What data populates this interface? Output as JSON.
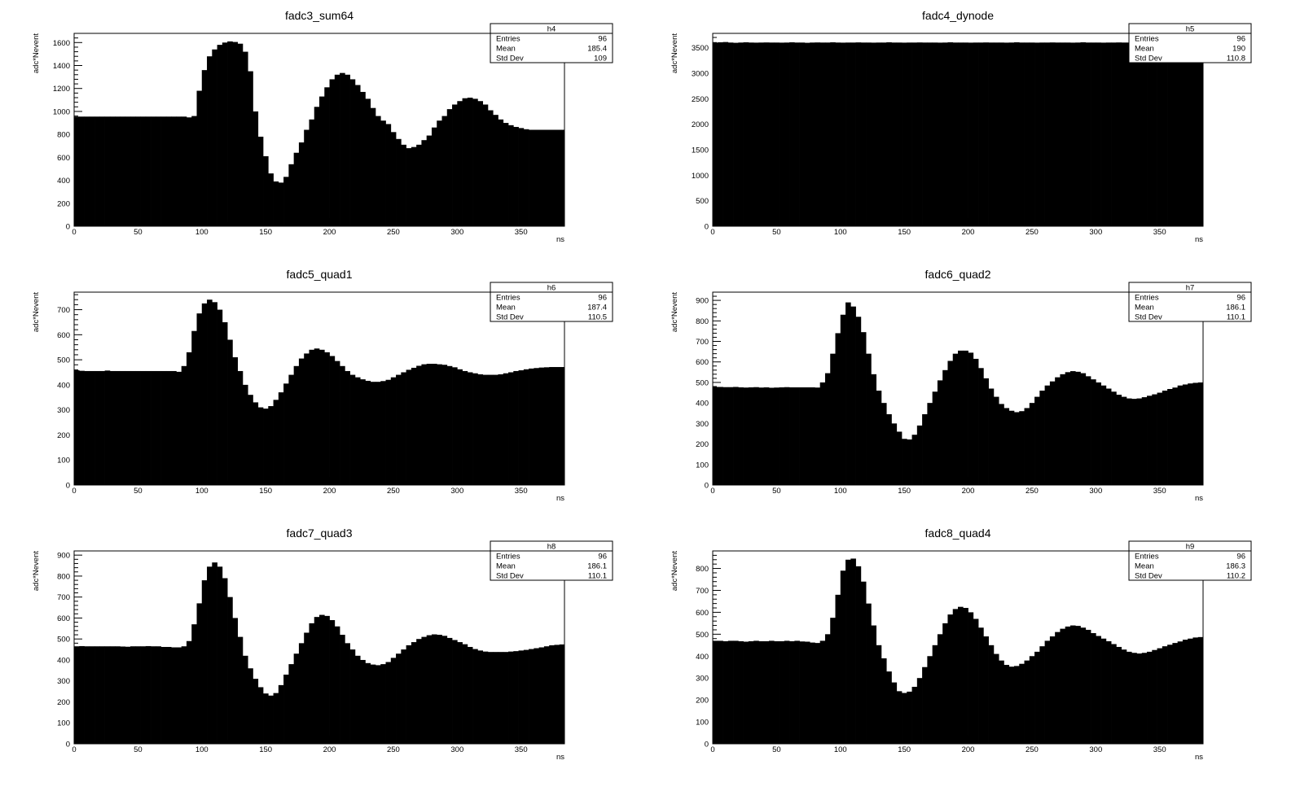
{
  "chart_data": [
    {
      "type": "bar",
      "title": "fadc3_sum64",
      "xlabel": "ns",
      "ylabel": "adc*Nevent",
      "xlim": [
        0,
        384
      ],
      "ylim": [
        0,
        1680
      ],
      "bin_width": 4,
      "xticks": [
        0,
        50,
        100,
        150,
        200,
        250,
        300,
        350
      ],
      "yticks": [
        0,
        200,
        400,
        600,
        800,
        1000,
        1200,
        1400,
        1600
      ],
      "bar_color": "#000000",
      "stats": {
        "name": "h4",
        "rows": [
          {
            "label": "Entries",
            "value": "96"
          },
          {
            "label": "Mean",
            "value": "185.4"
          },
          {
            "label": "Std Dev",
            "value": "109"
          }
        ]
      },
      "values": [
        955,
        955,
        955,
        955,
        955,
        955,
        955,
        955,
        955,
        955,
        955,
        955,
        955,
        955,
        955,
        955,
        955,
        955,
        955,
        955,
        955,
        955,
        948,
        960,
        1180,
        1360,
        1480,
        1540,
        1580,
        1600,
        1610,
        1605,
        1590,
        1520,
        1350,
        1000,
        780,
        610,
        460,
        390,
        380,
        430,
        540,
        640,
        730,
        840,
        930,
        1040,
        1130,
        1210,
        1280,
        1320,
        1335,
        1320,
        1280,
        1230,
        1170,
        1110,
        1030,
        960,
        920,
        890,
        820,
        760,
        710,
        680,
        690,
        710,
        750,
        790,
        860,
        920,
        960,
        1020,
        1060,
        1090,
        1115,
        1120,
        1110,
        1090,
        1060,
        1010,
        970,
        930,
        900,
        880,
        865,
        855,
        845,
        840,
        840,
        840,
        840,
        840,
        840,
        840
      ]
    },
    {
      "type": "bar",
      "title": "fadc4_dynode",
      "xlabel": "ns",
      "ylabel": "adc*Nevent",
      "xlim": [
        0,
        384
      ],
      "ylim": [
        0,
        3780
      ],
      "bin_width": 4,
      "xticks": [
        0,
        50,
        100,
        150,
        200,
        250,
        300,
        350
      ],
      "yticks": [
        0,
        500,
        1000,
        1500,
        2000,
        2500,
        3000,
        3500
      ],
      "bar_color": "#000000",
      "stats": {
        "name": "h5",
        "rows": [
          {
            "label": "Entries",
            "value": "96"
          },
          {
            "label": "Mean",
            "value": "190"
          },
          {
            "label": "Std Dev",
            "value": "110.8"
          }
        ]
      },
      "values": [
        3600,
        3605,
        3610,
        3600,
        3595,
        3600,
        3605,
        3600,
        3598,
        3600,
        3602,
        3600,
        3600,
        3598,
        3600,
        3605,
        3600,
        3600,
        3595,
        3600,
        3602,
        3600,
        3600,
        3605,
        3600,
        3598,
        3600,
        3600,
        3603,
        3600,
        3600,
        3598,
        3600,
        3600,
        3605,
        3600,
        3600,
        3598,
        3600,
        3600,
        3602,
        3600,
        3600,
        3600,
        3598,
        3600,
        3605,
        3600,
        3600,
        3600,
        3598,
        3600,
        3600,
        3602,
        3600,
        3600,
        3600,
        3598,
        3600,
        3605,
        3600,
        3600,
        3600,
        3598,
        3600,
        3600,
        3602,
        3600,
        3600,
        3600,
        3598,
        3600,
        3605,
        3600,
        3600,
        3600,
        3598,
        3600,
        3600,
        3602,
        3600,
        3600,
        3600,
        3598,
        3600,
        3605,
        3600,
        3600,
        3600,
        3598,
        3600,
        3600,
        3602,
        3600,
        3600,
        3600
      ]
    },
    {
      "type": "bar",
      "title": "fadc5_quad1",
      "xlabel": "ns",
      "ylabel": "adc*Nevent",
      "xlim": [
        0,
        384
      ],
      "ylim": [
        0,
        770
      ],
      "bin_width": 4,
      "xticks": [
        0,
        50,
        100,
        150,
        200,
        250,
        300,
        350
      ],
      "yticks": [
        0,
        100,
        200,
        300,
        400,
        500,
        600,
        700
      ],
      "bar_color": "#000000",
      "stats": {
        "name": "h6",
        "rows": [
          {
            "label": "Entries",
            "value": "96"
          },
          {
            "label": "Mean",
            "value": "187.4"
          },
          {
            "label": "Std Dev",
            "value": "110.5"
          }
        ]
      },
      "values": [
        458,
        456,
        455,
        455,
        455,
        455,
        457,
        455,
        455,
        455,
        455,
        455,
        455,
        455,
        455,
        455,
        455,
        455,
        455,
        455,
        452,
        475,
        530,
        615,
        685,
        725,
        740,
        730,
        700,
        650,
        580,
        510,
        455,
        400,
        360,
        330,
        310,
        305,
        315,
        340,
        370,
        405,
        440,
        475,
        505,
        525,
        540,
        545,
        540,
        530,
        515,
        495,
        475,
        455,
        440,
        430,
        422,
        416,
        412,
        412,
        415,
        420,
        430,
        440,
        450,
        460,
        468,
        476,
        482,
        484,
        484,
        482,
        480,
        475,
        470,
        462,
        455,
        450,
        446,
        442,
        440,
        440,
        440,
        442,
        446,
        450,
        455,
        458,
        462,
        465,
        467,
        469,
        470,
        471,
        471,
        471
      ]
    },
    {
      "type": "bar",
      "title": "fadc6_quad2",
      "xlabel": "ns",
      "ylabel": "adc*Nevent",
      "xlim": [
        0,
        384
      ],
      "ylim": [
        0,
        940
      ],
      "bin_width": 4,
      "xticks": [
        0,
        50,
        100,
        150,
        200,
        250,
        300,
        350
      ],
      "yticks": [
        0,
        100,
        200,
        300,
        400,
        500,
        600,
        700,
        800,
        900
      ],
      "bar_color": "#000000",
      "stats": {
        "name": "h7",
        "rows": [
          {
            "label": "Entries",
            "value": "96"
          },
          {
            "label": "Mean",
            "value": "186.1"
          },
          {
            "label": "Std Dev",
            "value": "110.1"
          }
        ]
      },
      "values": [
        478,
        478,
        477,
        477,
        478,
        476,
        475,
        476,
        477,
        475,
        476,
        474,
        475,
        476,
        477,
        476,
        476,
        476,
        476,
        476,
        475,
        500,
        545,
        640,
        740,
        830,
        890,
        870,
        820,
        745,
        640,
        540,
        460,
        400,
        345,
        300,
        260,
        225,
        222,
        245,
        290,
        345,
        400,
        455,
        510,
        560,
        605,
        640,
        655,
        655,
        645,
        615,
        570,
        520,
        470,
        430,
        395,
        375,
        362,
        355,
        360,
        375,
        400,
        430,
        460,
        485,
        505,
        525,
        540,
        550,
        555,
        552,
        545,
        530,
        515,
        500,
        485,
        470,
        455,
        440,
        430,
        422,
        420,
        422,
        428,
        435,
        442,
        450,
        460,
        468,
        475,
        485,
        490,
        495,
        498,
        500
      ]
    },
    {
      "type": "bar",
      "title": "fadc7_quad3",
      "xlabel": "ns",
      "ylabel": "adc*Nevent",
      "xlim": [
        0,
        384
      ],
      "ylim": [
        0,
        920
      ],
      "bin_width": 4,
      "xticks": [
        0,
        50,
        100,
        150,
        200,
        250,
        300,
        350
      ],
      "yticks": [
        0,
        100,
        200,
        300,
        400,
        500,
        600,
        700,
        800,
        900
      ],
      "bar_color": "#000000",
      "stats": {
        "name": "h8",
        "rows": [
          {
            "label": "Entries",
            "value": "96"
          },
          {
            "label": "Mean",
            "value": "186.1"
          },
          {
            "label": "Std Dev",
            "value": "110.1"
          }
        ]
      },
      "values": [
        465,
        466,
        465,
        465,
        465,
        465,
        465,
        465,
        465,
        464,
        463,
        465,
        465,
        465,
        466,
        465,
        465,
        462,
        462,
        460,
        460,
        465,
        490,
        570,
        670,
        780,
        845,
        865,
        845,
        790,
        700,
        600,
        510,
        420,
        360,
        310,
        270,
        240,
        230,
        242,
        280,
        330,
        380,
        430,
        480,
        530,
        575,
        605,
        615,
        610,
        590,
        560,
        520,
        480,
        450,
        420,
        400,
        385,
        378,
        375,
        380,
        390,
        410,
        430,
        450,
        470,
        485,
        500,
        510,
        518,
        522,
        520,
        515,
        505,
        495,
        485,
        475,
        462,
        452,
        445,
        440,
        438,
        438,
        438,
        438,
        440,
        442,
        445,
        448,
        452,
        456,
        460,
        465,
        470,
        472,
        474
      ]
    },
    {
      "type": "bar",
      "title": "fadc8_quad4",
      "xlabel": "ns",
      "ylabel": "adc*Nevent",
      "xlim": [
        0,
        384
      ],
      "ylim": [
        0,
        880
      ],
      "bin_width": 4,
      "xticks": [
        0,
        50,
        100,
        150,
        200,
        250,
        300,
        350
      ],
      "yticks": [
        0,
        100,
        200,
        300,
        400,
        500,
        600,
        700,
        800
      ],
      "bar_color": "#000000",
      "stats": {
        "name": "h9",
        "rows": [
          {
            "label": "Entries",
            "value": "96"
          },
          {
            "label": "Mean",
            "value": "186.3"
          },
          {
            "label": "Std Dev",
            "value": "110.2"
          }
        ]
      },
      "values": [
        470,
        470,
        468,
        470,
        470,
        468,
        466,
        468,
        470,
        468,
        468,
        470,
        468,
        468,
        470,
        468,
        470,
        467,
        466,
        462,
        460,
        470,
        500,
        575,
        680,
        790,
        840,
        845,
        810,
        740,
        640,
        540,
        450,
        390,
        330,
        280,
        240,
        232,
        238,
        260,
        300,
        350,
        400,
        450,
        500,
        550,
        590,
        615,
        625,
        620,
        600,
        570,
        530,
        490,
        450,
        410,
        380,
        360,
        352,
        355,
        365,
        380,
        400,
        420,
        445,
        470,
        490,
        510,
        525,
        535,
        540,
        538,
        530,
        520,
        505,
        492,
        480,
        468,
        455,
        442,
        430,
        420,
        415,
        412,
        415,
        420,
        428,
        436,
        445,
        452,
        460,
        467,
        475,
        480,
        485,
        487
      ]
    }
  ]
}
